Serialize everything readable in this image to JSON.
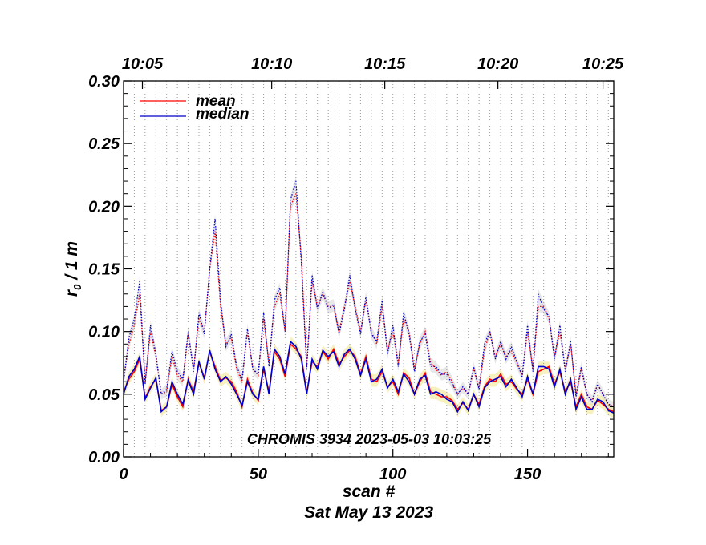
{
  "chart_data": {
    "type": "line",
    "xlabel": "scan #",
    "date_label": "Sat May 13 2023",
    "ylabel_main": "r",
    "ylabel_sub": "0",
    "ylabel_suffix": " / 1 m",
    "annotation": "CHROMIS 3934 2023-05-03 10:03:25",
    "xlim": [
      0,
      182
    ],
    "ylim": [
      0.0,
      0.3
    ],
    "x_ticks": [
      0,
      50,
      100,
      150
    ],
    "x_tick_labels": [
      "0",
      "50",
      "100",
      "150"
    ],
    "y_ticks": [
      0.0,
      0.05,
      0.1,
      0.15,
      0.2,
      0.25,
      0.3
    ],
    "y_tick_labels": [
      "0.00",
      "0.05",
      "0.10",
      "0.15",
      "0.20",
      "0.25",
      "0.30"
    ],
    "top_axis_ticks": [
      {
        "scan": 7,
        "label": "10:05"
      },
      {
        "scan": 55,
        "label": "10:10"
      },
      {
        "scan": 97,
        "label": "10:15"
      },
      {
        "scan": 139,
        "label": "10:20"
      },
      {
        "scan": 178,
        "label": "10:25"
      }
    ],
    "vertical_gridlines_every": 4,
    "legend_position": "top-left",
    "colors": {
      "mean": "#ff0000",
      "median": "#0000cc",
      "lower_band": "#f0e68c",
      "upper_band": "#d3d3d3"
    },
    "series": [
      {
        "name": "mean",
        "style": "solid",
        "color": "#ff0000"
      },
      {
        "name": "median",
        "style": "solid",
        "color": "#0000cc"
      }
    ],
    "x": [
      0,
      2,
      4,
      6,
      8,
      10,
      12,
      14,
      16,
      18,
      20,
      22,
      24,
      26,
      28,
      30,
      32,
      34,
      36,
      38,
      40,
      42,
      44,
      46,
      48,
      50,
      52,
      54,
      56,
      58,
      60,
      62,
      64,
      66,
      68,
      70,
      72,
      74,
      76,
      78,
      80,
      82,
      84,
      86,
      88,
      90,
      92,
      94,
      96,
      98,
      100,
      102,
      104,
      106,
      108,
      110,
      112,
      114,
      116,
      118,
      120,
      122,
      124,
      126,
      128,
      130,
      132,
      134,
      136,
      138,
      140,
      142,
      144,
      146,
      148,
      150,
      152,
      154,
      156,
      158,
      160,
      162,
      164,
      166,
      168,
      170,
      172,
      174,
      176,
      178,
      180,
      182
    ],
    "lower_mean": [
      0.052,
      0.062,
      0.068,
      0.078,
      0.047,
      0.056,
      0.062,
      0.037,
      0.04,
      0.058,
      0.048,
      0.04,
      0.062,
      0.052,
      0.075,
      0.063,
      0.084,
      0.072,
      0.061,
      0.063,
      0.06,
      0.052,
      0.04,
      0.062,
      0.051,
      0.045,
      0.07,
      0.052,
      0.084,
      0.078,
      0.064,
      0.09,
      0.086,
      0.08,
      0.051,
      0.076,
      0.072,
      0.084,
      0.078,
      0.086,
      0.074,
      0.08,
      0.085,
      0.08,
      0.066,
      0.08,
      0.062,
      0.06,
      0.068,
      0.056,
      0.06,
      0.05,
      0.067,
      0.063,
      0.05,
      0.06,
      0.067,
      0.052,
      0.05,
      0.048,
      0.048,
      0.045,
      0.038,
      0.043,
      0.038,
      0.05,
      0.042,
      0.056,
      0.062,
      0.06,
      0.066,
      0.058,
      0.06,
      0.054,
      0.05,
      0.062,
      0.05,
      0.068,
      0.07,
      0.072,
      0.058,
      0.068,
      0.052,
      0.06,
      0.04,
      0.05,
      0.04,
      0.038,
      0.045,
      0.042,
      0.038,
      0.036
    ],
    "lower_median": [
      0.05,
      0.064,
      0.07,
      0.08,
      0.046,
      0.055,
      0.063,
      0.036,
      0.04,
      0.06,
      0.05,
      0.042,
      0.061,
      0.05,
      0.076,
      0.062,
      0.085,
      0.07,
      0.06,
      0.064,
      0.058,
      0.05,
      0.041,
      0.06,
      0.05,
      0.046,
      0.072,
      0.05,
      0.086,
      0.08,
      0.066,
      0.092,
      0.088,
      0.078,
      0.05,
      0.078,
      0.07,
      0.085,
      0.08,
      0.084,
      0.072,
      0.082,
      0.086,
      0.078,
      0.065,
      0.078,
      0.06,
      0.062,
      0.07,
      0.055,
      0.062,
      0.052,
      0.066,
      0.06,
      0.05,
      0.062,
      0.065,
      0.05,
      0.052,
      0.05,
      0.046,
      0.044,
      0.036,
      0.044,
      0.037,
      0.05,
      0.04,
      0.055,
      0.06,
      0.062,
      0.064,
      0.056,
      0.062,
      0.055,
      0.048,
      0.064,
      0.05,
      0.072,
      0.072,
      0.07,
      0.056,
      0.07,
      0.05,
      0.062,
      0.038,
      0.048,
      0.038,
      0.038,
      0.046,
      0.044,
      0.037,
      0.035
    ],
    "upper_mean": [
      0.062,
      0.09,
      0.105,
      0.13,
      0.06,
      0.1,
      0.08,
      0.05,
      0.052,
      0.08,
      0.065,
      0.06,
      0.098,
      0.07,
      0.11,
      0.1,
      0.15,
      0.18,
      0.12,
      0.09,
      0.095,
      0.07,
      0.06,
      0.1,
      0.07,
      0.065,
      0.11,
      0.075,
      0.12,
      0.13,
      0.1,
      0.2,
      0.21,
      0.16,
      0.072,
      0.14,
      0.12,
      0.13,
      0.12,
      0.12,
      0.1,
      0.12,
      0.14,
      0.12,
      0.1,
      0.125,
      0.1,
      0.09,
      0.12,
      0.085,
      0.1,
      0.075,
      0.11,
      0.1,
      0.07,
      0.09,
      0.1,
      0.075,
      0.07,
      0.065,
      0.068,
      0.06,
      0.05,
      0.055,
      0.05,
      0.07,
      0.055,
      0.085,
      0.1,
      0.08,
      0.09,
      0.08,
      0.085,
      0.075,
      0.065,
      0.1,
      0.07,
      0.12,
      0.12,
      0.11,
      0.08,
      0.1,
      0.07,
      0.09,
      0.05,
      0.07,
      0.05,
      0.045,
      0.058,
      0.05,
      0.042,
      0.04
    ],
    "upper_median": [
      0.06,
      0.095,
      0.11,
      0.14,
      0.058,
      0.105,
      0.082,
      0.05,
      0.054,
      0.084,
      0.068,
      0.062,
      0.1,
      0.068,
      0.115,
      0.098,
      0.15,
      0.19,
      0.125,
      0.088,
      0.098,
      0.072,
      0.062,
      0.102,
      0.07,
      0.066,
      0.115,
      0.072,
      0.125,
      0.135,
      0.1,
      0.205,
      0.22,
      0.155,
      0.07,
      0.145,
      0.118,
      0.132,
      0.118,
      0.122,
      0.098,
      0.118,
      0.145,
      0.118,
      0.098,
      0.128,
      0.098,
      0.092,
      0.125,
      0.082,
      0.105,
      0.072,
      0.115,
      0.098,
      0.068,
      0.092,
      0.098,
      0.072,
      0.072,
      0.066,
      0.066,
      0.058,
      0.05,
      0.056,
      0.05,
      0.072,
      0.054,
      0.09,
      0.1,
      0.078,
      0.092,
      0.078,
      0.088,
      0.076,
      0.064,
      0.105,
      0.068,
      0.13,
      0.118,
      0.112,
      0.078,
      0.105,
      0.068,
      0.092,
      0.048,
      0.072,
      0.05,
      0.044,
      0.058,
      0.05,
      0.042,
      0.04
    ]
  }
}
